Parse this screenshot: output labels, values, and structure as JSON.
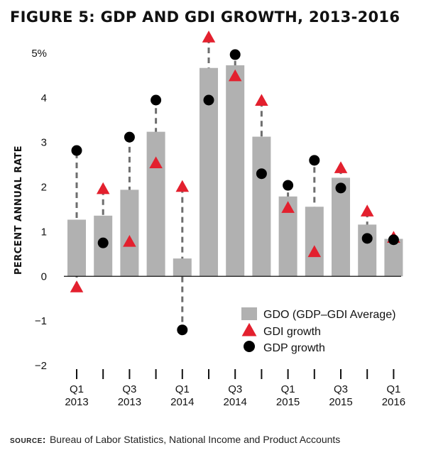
{
  "title": "FIGURE 5: GDP AND GDI GROWTH, 2013-2016",
  "source": {
    "label": "source:",
    "text": "Bureau of Labor Statistics, National Income and Product Accounts"
  },
  "chart_data": {
    "type": "bar",
    "title": "FIGURE 5: GDP AND GDI GROWTH, 2013-2016",
    "ylabel": "PERCENT ANNUAL RATE",
    "xlabel": "",
    "ylim": [
      -2,
      5
    ],
    "yticks": [
      5,
      4,
      3,
      2,
      1,
      0,
      -1,
      -2
    ],
    "ytick_labels": [
      "5%",
      "4",
      "3",
      "2",
      "1",
      "0",
      "−1",
      "−2"
    ],
    "categories": [
      "Q1 2013",
      "Q2 2013",
      "Q3 2013",
      "Q4 2013",
      "Q1 2014",
      "Q2 2014",
      "Q3 2014",
      "Q4 2014",
      "Q1 2015",
      "Q2 2015",
      "Q3 2015",
      "Q4 2015",
      "Q1 2016"
    ],
    "x_tick_labels": [
      {
        "index": 0,
        "line1": "Q1",
        "line2": "2013"
      },
      {
        "index": 2,
        "line1": "Q3",
        "line2": "2013"
      },
      {
        "index": 4,
        "line1": "Q1",
        "line2": "2014"
      },
      {
        "index": 6,
        "line1": "Q3",
        "line2": "2014"
      },
      {
        "index": 8,
        "line1": "Q1",
        "line2": "2015"
      },
      {
        "index": 10,
        "line1": "Q3",
        "line2": "2015"
      },
      {
        "index": 12,
        "line1": "Q1",
        "line2": "2016"
      }
    ],
    "series": [
      {
        "name": "GDO (GDP–GDI Average)",
        "kind": "bar",
        "color": "#b1b1b1",
        "values": [
          1.27,
          1.36,
          1.94,
          3.24,
          0.4,
          4.67,
          4.73,
          3.13,
          1.79,
          1.56,
          2.21,
          1.16,
          0.84
        ]
      },
      {
        "name": "GDI growth",
        "kind": "triangle",
        "color": "#e3202e",
        "values": [
          -0.25,
          1.95,
          0.77,
          2.53,
          2.0,
          5.35,
          4.48,
          3.93,
          1.53,
          0.54,
          2.42,
          1.45,
          0.86
        ]
      },
      {
        "name": "GDP growth",
        "kind": "circle",
        "color": "#000000",
        "values": [
          2.82,
          0.75,
          3.12,
          3.95,
          -1.2,
          3.95,
          4.97,
          2.3,
          2.04,
          2.6,
          1.98,
          0.85,
          0.82
        ]
      }
    ],
    "connector": {
      "style": "dashed",
      "color": "#6e6e6e"
    },
    "grid": false,
    "legend": {
      "position": "bottom-right"
    }
  }
}
